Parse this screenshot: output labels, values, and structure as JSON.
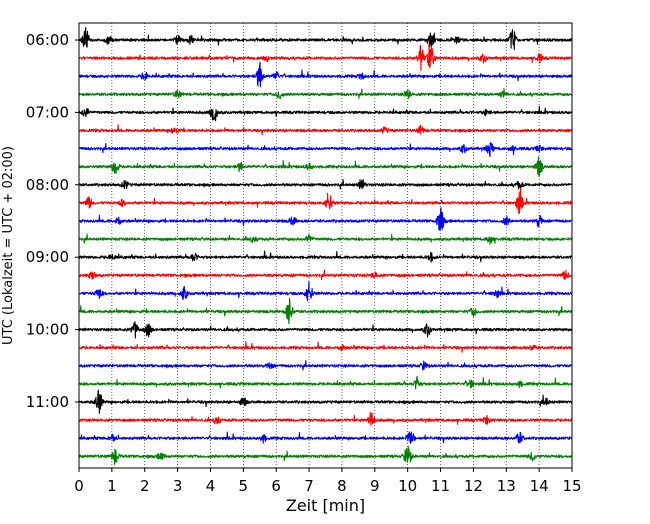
{
  "chart_data": {
    "type": "line",
    "title": "",
    "xlabel": "Zeit  [min]",
    "ylabel": "UTC (Lokalzeit = UTC + 02:00)",
    "xlim": [
      0,
      15
    ],
    "x_ticks": [
      "0",
      "1",
      "2",
      "3",
      "4",
      "5",
      "6",
      "7",
      "8",
      "9",
      "10",
      "11",
      "12",
      "13",
      "14",
      "15"
    ],
    "y_tick_labels": [
      "06:00",
      "07:00",
      "08:00",
      "09:00",
      "10:00",
      "11:00"
    ],
    "y_tick_trace_index": [
      0,
      4,
      8,
      12,
      16,
      20
    ],
    "grid": "vertical dotted lines at each minute",
    "trace_colors": [
      "#000000",
      "#ff0000",
      "#0000ff",
      "#008000"
    ],
    "trace_start_times": [
      "06:00",
      "06:15",
      "06:30",
      "06:45",
      "07:00",
      "07:15",
      "07:30",
      "07:45",
      "08:00",
      "08:15",
      "08:30",
      "08:45",
      "09:00",
      "09:15",
      "09:30",
      "09:45",
      "10:00",
      "10:15",
      "10:30",
      "10:45",
      "11:00",
      "11:15",
      "11:30",
      "11:45"
    ],
    "trace_span_min": 15,
    "series": [
      {
        "events": [
          [
            0.2,
            0.9
          ],
          [
            0.9,
            0.3
          ],
          [
            3.0,
            0.3
          ],
          [
            3.4,
            0.3
          ],
          [
            10.7,
            0.6
          ],
          [
            13.2,
            0.9
          ],
          [
            11.5,
            0.2
          ]
        ]
      },
      {
        "events": [
          [
            10.4,
            0.9
          ],
          [
            10.7,
            1.0
          ],
          [
            12.3,
            0.3
          ],
          [
            14.0,
            0.3
          ],
          [
            5.7,
            0.2
          ]
        ]
      },
      {
        "events": [
          [
            2.0,
            0.3
          ],
          [
            5.5,
            1.0
          ],
          [
            6.0,
            0.3
          ],
          [
            8.6,
            0.2
          ]
        ]
      },
      {
        "events": [
          [
            3.0,
            0.3
          ],
          [
            6.1,
            0.3
          ],
          [
            10.0,
            0.3
          ],
          [
            12.9,
            0.2
          ]
        ]
      },
      {
        "events": [
          [
            0.2,
            0.4
          ],
          [
            4.1,
            0.9
          ],
          [
            12.4,
            0.2
          ]
        ]
      },
      {
        "events": [
          [
            2.9,
            0.3
          ],
          [
            9.3,
            0.2
          ],
          [
            10.4,
            0.3
          ]
        ]
      },
      {
        "events": [
          [
            11.7,
            0.3
          ],
          [
            12.5,
            0.5
          ],
          [
            13.2,
            0.2
          ],
          [
            14.0,
            0.2
          ]
        ]
      },
      {
        "events": [
          [
            1.1,
            0.6
          ],
          [
            4.9,
            0.3
          ],
          [
            7.0,
            0.2
          ],
          [
            14.0,
            0.7
          ]
        ]
      },
      {
        "events": [
          [
            1.4,
            0.3
          ],
          [
            8.6,
            0.4
          ],
          [
            13.4,
            0.3
          ]
        ]
      },
      {
        "events": [
          [
            0.3,
            0.4
          ],
          [
            7.6,
            0.8
          ],
          [
            13.4,
            0.8
          ],
          [
            1.3,
            0.2
          ]
        ]
      },
      {
        "events": [
          [
            1.2,
            0.3
          ],
          [
            6.5,
            0.3
          ],
          [
            11.0,
            1.0
          ],
          [
            13.0,
            0.3
          ],
          [
            14.0,
            0.4
          ]
        ]
      },
      {
        "events": [
          [
            5.3,
            0.2
          ],
          [
            7.0,
            0.3
          ],
          [
            12.5,
            0.3
          ]
        ]
      },
      {
        "events": [
          [
            1.0,
            0.2
          ],
          [
            3.5,
            0.3
          ],
          [
            10.7,
            0.3
          ]
        ]
      },
      {
        "events": [
          [
            0.4,
            0.3
          ],
          [
            14.8,
            0.3
          ],
          [
            9.0,
            0.2
          ]
        ]
      },
      {
        "events": [
          [
            0.6,
            0.4
          ],
          [
            3.2,
            0.5
          ],
          [
            7.0,
            0.9
          ],
          [
            12.7,
            0.3
          ]
        ]
      },
      {
        "events": [
          [
            6.4,
            1.0
          ],
          [
            12.0,
            0.3
          ]
        ]
      },
      {
        "events": [
          [
            1.7,
            0.6
          ],
          [
            2.1,
            0.5
          ],
          [
            10.6,
            0.5
          ]
        ]
      },
      {
        "events": [
          [
            8.0,
            0.2
          ],
          [
            13.8,
            0.2
          ]
        ]
      },
      {
        "events": [
          [
            5.8,
            0.2
          ],
          [
            10.5,
            0.3
          ]
        ]
      },
      {
        "events": [
          [
            10.3,
            0.5
          ],
          [
            11.9,
            0.3
          ],
          [
            13.4,
            0.2
          ]
        ]
      },
      {
        "events": [
          [
            0.6,
            0.9
          ],
          [
            5.0,
            0.3
          ],
          [
            14.2,
            0.3
          ]
        ]
      },
      {
        "events": [
          [
            4.2,
            0.3
          ],
          [
            8.9,
            0.6
          ],
          [
            12.4,
            0.3
          ]
        ]
      },
      {
        "events": [
          [
            1.0,
            0.3
          ],
          [
            5.6,
            0.3
          ],
          [
            10.1,
            0.6
          ],
          [
            13.4,
            0.4
          ]
        ]
      },
      {
        "events": [
          [
            1.1,
            0.6
          ],
          [
            2.5,
            0.3
          ],
          [
            10.0,
            0.9
          ],
          [
            13.8,
            0.3
          ]
        ]
      }
    ]
  }
}
